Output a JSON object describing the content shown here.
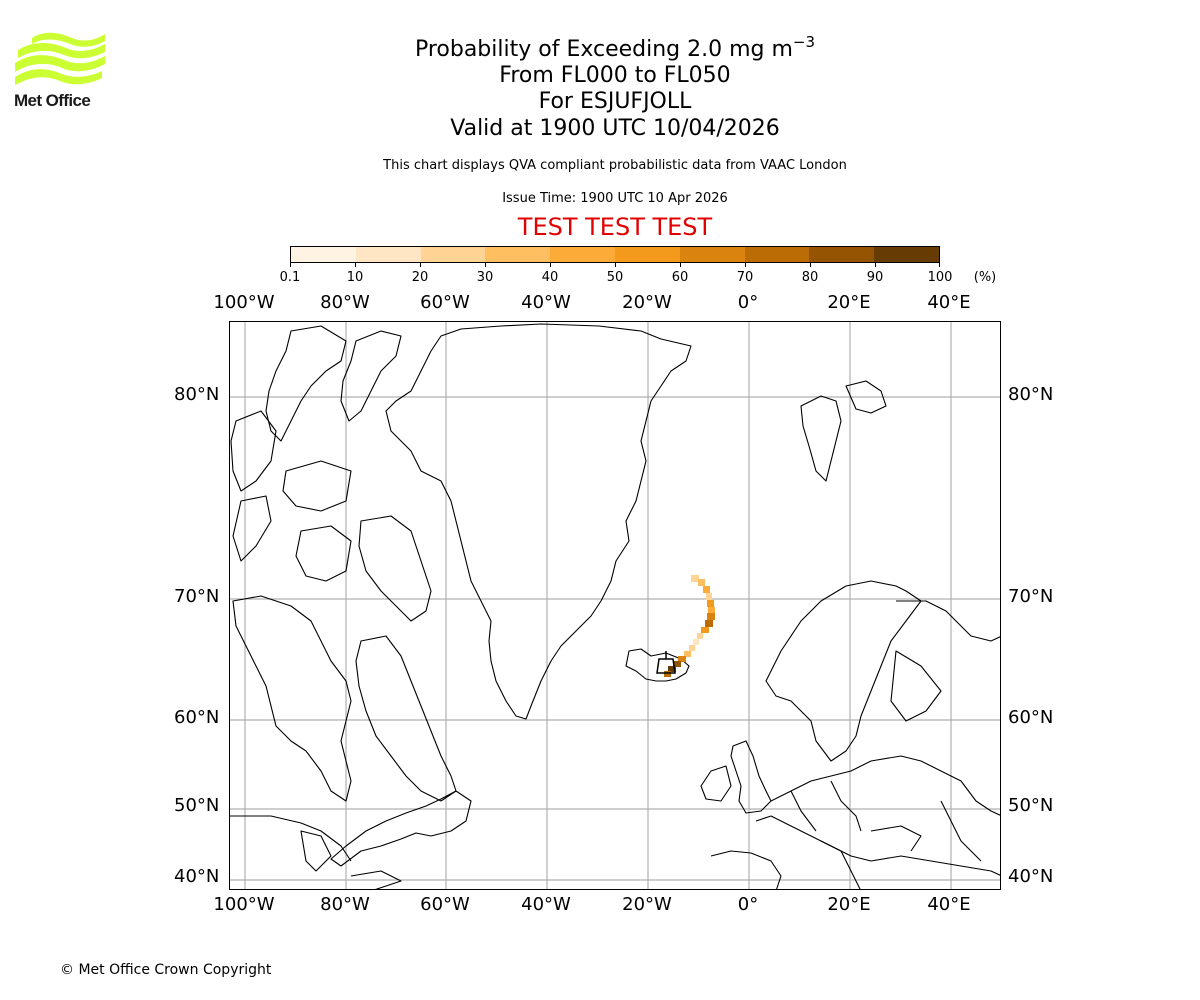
{
  "logo": {
    "text": "Met Office",
    "wave_color": "#ccff33",
    "icon": "met-office-waves-icon"
  },
  "header": {
    "title_main": "Probability of Exceeding 2.0 mg m",
    "title_superscript": "−3",
    "line2": "From FL000 to FL050",
    "line3": "For ESJUFJOLL",
    "line4": "Valid at 1900 UTC 10/04/2026",
    "description": "This chart displays QVA compliant probabilistic data from VAAC London",
    "issue_time": "Issue Time: 1900 UTC 10 Apr 2026",
    "test_banner": "TEST TEST TEST",
    "test_banner_color": "#e00000"
  },
  "colorbar": {
    "unit": "(%)",
    "ticks": [
      "0.1",
      "10",
      "20",
      "30",
      "40",
      "50",
      "60",
      "70",
      "80",
      "90",
      "100"
    ],
    "colors": [
      "#fff4e3",
      "#fee6c4",
      "#fed393",
      "#febf60",
      "#fdab38",
      "#f39a1c",
      "#da840f",
      "#bb6c05",
      "#945402",
      "#673b04"
    ]
  },
  "axes": {
    "lon_labels": [
      "100°W",
      "80°W",
      "60°W",
      "40°W",
      "20°W",
      "0°",
      "20°E",
      "40°E"
    ],
    "lat_labels": [
      "80°N",
      "70°N",
      "60°N",
      "50°N",
      "40°N"
    ]
  },
  "chart_data": {
    "type": "heatmap",
    "title": "Probability of Exceeding 2.0 mg m−3",
    "subtitle": [
      "From FL000 to FL050",
      "For ESJUFJOLL",
      "Valid at 1900 UTC 10/04/2026"
    ],
    "projection": "Polar stereographic-like (North Atlantic / Europe)",
    "lon_ticks": [
      "100°W",
      "80°W",
      "60°W",
      "40°W",
      "20°W",
      "0°",
      "20°E",
      "40°E"
    ],
    "lat_ticks": [
      "80°N",
      "70°N",
      "60°N",
      "50°N",
      "40°N"
    ],
    "colorbar": {
      "label": "(%)",
      "bounds": [
        0.1,
        10,
        20,
        30,
        40,
        50,
        60,
        70,
        80,
        90,
        100
      ]
    },
    "grid": true,
    "plume": {
      "source": "ESJUFJOLL (SE Iceland)",
      "description": "Narrow ash-concentration probability plume extending from SE Iceland (~64°N, 16°W) north-eastward then northward to ~71°N, 11°W",
      "approx_points": [
        {
          "lat": 64.0,
          "lon": -16.0,
          "prob_pct": 80
        },
        {
          "lat": 64.6,
          "lon": -15.0,
          "prob_pct": 70
        },
        {
          "lat": 65.5,
          "lon": -13.5,
          "prob_pct": 30
        },
        {
          "lat": 66.8,
          "lon": -12.0,
          "prob_pct": 20
        },
        {
          "lat": 67.8,
          "lon": -11.0,
          "prob_pct": 75
        },
        {
          "lat": 68.8,
          "lon": -11.0,
          "prob_pct": 50
        },
        {
          "lat": 69.8,
          "lon": -11.5,
          "prob_pct": 40
        },
        {
          "lat": 70.8,
          "lon": -13.0,
          "prob_pct": 20
        }
      ]
    }
  },
  "footer": {
    "copyright": "© Met Office Crown Copyright"
  }
}
